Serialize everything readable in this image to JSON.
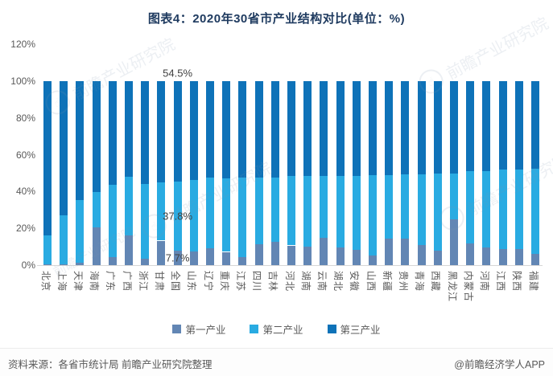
{
  "title": "图表4：2020年30省市产业结构对比(单位：%)",
  "chart_data": {
    "type": "bar",
    "stacked": true,
    "percent_total": 100,
    "unit": "%",
    "title": "图表4：2020年30省市产业结构对比(单位：%)",
    "xlabel": "",
    "ylabel": "",
    "ylim": [
      0,
      120
    ],
    "y_ticks": [
      "0%",
      "20%",
      "40%",
      "60%",
      "80%",
      "100%",
      "120%"
    ],
    "grid": false,
    "legend_position": "bottom",
    "categories": [
      "北京",
      "上海",
      "天津",
      "海南",
      "广东",
      "广西",
      "浙江",
      "甘肃",
      "全国",
      "山东",
      "辽宁",
      "重庆",
      "江苏",
      "四川",
      "吉林",
      "河北",
      "湖南",
      "云南",
      "湖北",
      "安徽",
      "山西",
      "新疆",
      "贵州",
      "青海",
      "西藏",
      "黑龙江",
      "内蒙古",
      "河南",
      "江西",
      "陕西",
      "福建"
    ],
    "series": [
      {
        "name": "第一产业",
        "color": "#6286b4",
        "values": [
          0.4,
          0.3,
          1.5,
          20.5,
          4.3,
          16.0,
          3.3,
          13.3,
          7.7,
          7.3,
          9.3,
          7.2,
          4.4,
          11.4,
          12.6,
          10.7,
          10.2,
          14.7,
          9.5,
          8.2,
          5.4,
          14.4,
          14.3,
          11.0,
          7.9,
          25.1,
          11.7,
          9.7,
          8.7,
          8.7,
          6.2
        ]
      },
      {
        "name": "第二产业",
        "color": "#29abe2",
        "values": [
          15.8,
          26.6,
          34.1,
          19.1,
          39.2,
          32.1,
          40.9,
          31.8,
          37.8,
          39.1,
          38.3,
          40.0,
          43.1,
          36.2,
          35.2,
          37.6,
          38.1,
          33.8,
          39.1,
          40.5,
          43.5,
          34.7,
          35.0,
          38.5,
          42.0,
          24.9,
          39.6,
          41.6,
          43.2,
          43.4,
          46.3
        ]
      },
      {
        "name": "第三产业",
        "color": "#0e72b8",
        "values": [
          83.8,
          73.1,
          64.4,
          60.4,
          56.5,
          51.9,
          55.8,
          54.9,
          54.5,
          53.6,
          52.4,
          52.8,
          52.5,
          52.4,
          52.2,
          51.7,
          51.7,
          51.5,
          51.4,
          51.3,
          51.1,
          50.9,
          50.7,
          50.5,
          50.1,
          50.0,
          48.7,
          48.7,
          48.1,
          47.9,
          47.5
        ]
      }
    ],
    "annotations": [
      {
        "category": "全国",
        "series": "第三产业",
        "text": "54.5%",
        "placement": "above"
      },
      {
        "category": "全国",
        "series": "第二产业",
        "text": "37.8%",
        "placement": "middle"
      },
      {
        "category": "全国",
        "series": "第一产业",
        "text": "7.7%",
        "placement": "middle"
      }
    ]
  },
  "footer": {
    "source": "资料来源：各省市统计局 前瞻产业研究院整理",
    "credit": "@前瞻经济学人APP"
  },
  "watermark": {
    "text": "前瞻产业研究院",
    "icon": "hand-pointer-icon"
  }
}
